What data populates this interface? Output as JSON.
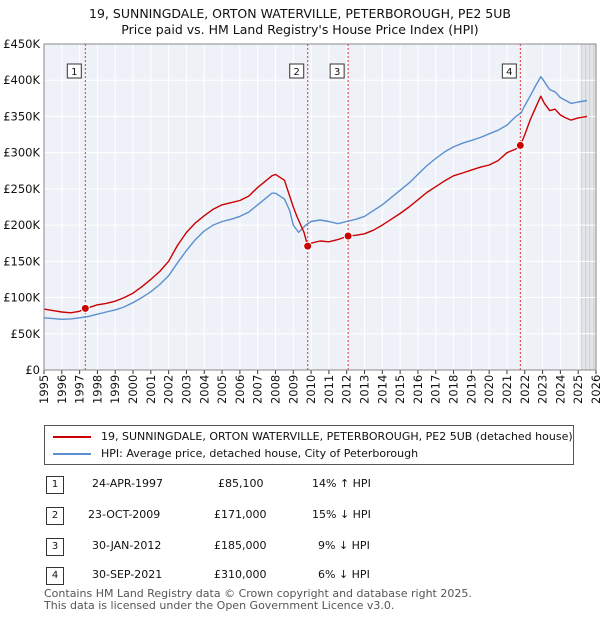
{
  "chart_data": {
    "type": "line",
    "title": "19, SUNNINGDALE, ORTON WATERVILLE, PETERBOROUGH, PE2 5UB",
    "subtitle": "Price paid vs. HM Land Registry's House Price Index (HPI)",
    "xlim": [
      1995,
      2026
    ],
    "ylim": [
      0,
      450000
    ],
    "x_ticks": [
      1995,
      1996,
      1997,
      1998,
      1999,
      2000,
      2001,
      2002,
      2003,
      2004,
      2005,
      2006,
      2007,
      2008,
      2009,
      2010,
      2011,
      2012,
      2013,
      2014,
      2015,
      2016,
      2017,
      2018,
      2019,
      2020,
      2021,
      2022,
      2023,
      2024,
      2025,
      2026
    ],
    "y_ticks": [
      0,
      50000,
      100000,
      150000,
      200000,
      250000,
      300000,
      350000,
      400000,
      450000
    ],
    "y_tick_labels": [
      "£0",
      "£50K",
      "£100K",
      "£150K",
      "£200K",
      "£250K",
      "£300K",
      "£350K",
      "£400K",
      "£450K"
    ],
    "forecast_start": 2025.2,
    "series": [
      {
        "name": "19, SUNNINGDALE, ORTON WATERVILLE, PETERBOROUGH, PE2 5UB (detached house)",
        "color": "#cc0000",
        "x": [
          1995,
          1995.5,
          1996,
          1996.5,
          1997,
          1997.32,
          1997.5,
          1998,
          1998.5,
          1999,
          1999.5,
          2000,
          2000.5,
          2001,
          2001.5,
          2002,
          2002.5,
          2003,
          2003.5,
          2004,
          2004.5,
          2005,
          2005.5,
          2006,
          2006.5,
          2007,
          2007.5,
          2007.8,
          2008,
          2008.5,
          2008.8,
          2009,
          2009.2,
          2009.6,
          2009.81,
          2010,
          2010.5,
          2011,
          2011.5,
          2012.08,
          2012.5,
          2013,
          2013.5,
          2014,
          2014.5,
          2015,
          2015.5,
          2016,
          2016.5,
          2017,
          2017.5,
          2018,
          2018.5,
          2019,
          2019.5,
          2020,
          2020.5,
          2021,
          2021.5,
          2021.75,
          2022,
          2022.3,
          2022.6,
          2022.9,
          2023.1,
          2023.4,
          2023.7,
          2024,
          2024.3,
          2024.6,
          2025,
          2025.5
        ],
        "y": [
          84000,
          82000,
          80000,
          79000,
          81000,
          85100,
          86000,
          90000,
          92000,
          95000,
          100000,
          106000,
          115000,
          125000,
          136000,
          150000,
          172000,
          190000,
          203000,
          213000,
          222000,
          228000,
          231000,
          234000,
          240000,
          252000,
          262000,
          268000,
          270000,
          262000,
          240000,
          225000,
          212000,
          190000,
          171000,
          175000,
          178000,
          177000,
          180000,
          185000,
          186000,
          188000,
          193000,
          200000,
          208000,
          216000,
          225000,
          235000,
          245000,
          253000,
          261000,
          268000,
          272000,
          276000,
          280000,
          283000,
          289000,
          300000,
          305000,
          310000,
          325000,
          345000,
          362000,
          378000,
          368000,
          358000,
          360000,
          352000,
          348000,
          345000,
          348000,
          350000
        ]
      },
      {
        "name": "HPI: Average price, detached house, City of Peterborough",
        "color": "#5b8fd0",
        "x": [
          1995,
          1995.5,
          1996,
          1996.5,
          1997,
          1997.5,
          1998,
          1998.5,
          1999,
          1999.5,
          2000,
          2000.5,
          2001,
          2001.5,
          2002,
          2002.5,
          2003,
          2003.5,
          2004,
          2004.5,
          2005,
          2005.5,
          2006,
          2006.5,
          2007,
          2007.5,
          2007.8,
          2008,
          2008.5,
          2008.8,
          2009,
          2009.3,
          2009.7,
          2010,
          2010.5,
          2011,
          2011.5,
          2012,
          2012.5,
          2013,
          2013.5,
          2014,
          2014.5,
          2015,
          2015.5,
          2016,
          2016.5,
          2017,
          2017.5,
          2018,
          2018.5,
          2019,
          2019.5,
          2020,
          2020.5,
          2021,
          2021.5,
          2021.8,
          2022,
          2022.3,
          2022.6,
          2022.9,
          2023.1,
          2023.4,
          2023.7,
          2024,
          2024.3,
          2024.6,
          2025,
          2025.5
        ],
        "y": [
          72000,
          71000,
          70000,
          70500,
          72000,
          74000,
          77000,
          80000,
          83000,
          87000,
          93000,
          100000,
          108000,
          118000,
          130000,
          148000,
          165000,
          180000,
          192000,
          200000,
          205000,
          208000,
          212000,
          218000,
          228000,
          238000,
          244000,
          244000,
          236000,
          220000,
          200000,
          190000,
          200000,
          205000,
          207000,
          205000,
          202000,
          205000,
          208000,
          212000,
          220000,
          228000,
          238000,
          248000,
          258000,
          270000,
          282000,
          292000,
          301000,
          308000,
          313000,
          317000,
          321000,
          326000,
          331000,
          338000,
          350000,
          355000,
          365000,
          378000,
          392000,
          405000,
          398000,
          387000,
          384000,
          376000,
          372000,
          368000,
          370000,
          372000
        ]
      }
    ],
    "annotations": [
      {
        "label": "1",
        "x": 1997.32,
        "y": 85100
      },
      {
        "label": "2",
        "x": 2009.81,
        "y": 171000
      },
      {
        "label": "3",
        "x": 2012.08,
        "y": 185000
      },
      {
        "label": "4",
        "x": 2021.75,
        "y": 310000
      }
    ]
  },
  "legend": {
    "entries": [
      {
        "label": "19, SUNNINGDALE, ORTON WATERVILLE, PETERBOROUGH, PE2 5UB (detached house)",
        "color": "#cc0000"
      },
      {
        "label": "HPI: Average price, detached house, City of Peterborough",
        "color": "#5b8fd0"
      }
    ]
  },
  "sales": [
    {
      "num": "1",
      "date": "24-APR-1997",
      "price": "£85,100",
      "hpi": "14% ↑ HPI"
    },
    {
      "num": "2",
      "date": "23-OCT-2009",
      "price": "£171,000",
      "hpi": "15% ↓ HPI"
    },
    {
      "num": "3",
      "date": "30-JAN-2012",
      "price": "£185,000",
      "hpi": "9% ↓ HPI"
    },
    {
      "num": "4",
      "date": "30-SEP-2021",
      "price": "£310,000",
      "hpi": "6% ↓ HPI"
    }
  ],
  "footer": {
    "line1": "Contains HM Land Registry data © Crown copyright and database right 2025.",
    "line2": "This data is licensed under the Open Government Licence v3.0."
  }
}
